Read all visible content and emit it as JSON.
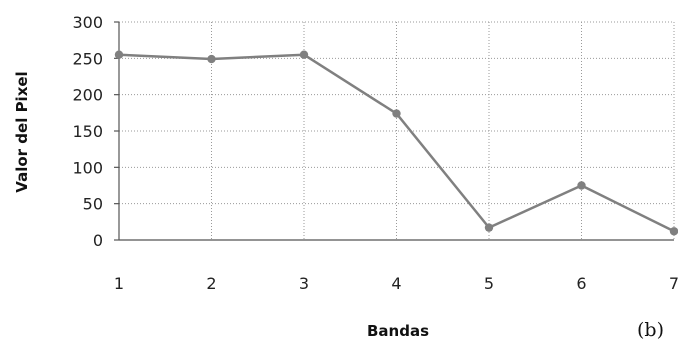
{
  "chart_data": {
    "type": "line",
    "title": "",
    "xlabel": "Bandas",
    "ylabel": "Valor del Pixel",
    "panel_label": "(b)",
    "x": [
      1,
      2,
      3,
      4,
      5,
      6,
      7
    ],
    "x_tick_labels": [
      "1",
      "2",
      "3",
      "4",
      "5",
      "6",
      "7"
    ],
    "y_tick_labels": [
      "0",
      "50",
      "100",
      "150",
      "200",
      "250",
      "300"
    ],
    "ylim": [
      0,
      300
    ],
    "xlim": [
      1,
      7
    ],
    "grid": true,
    "legend": "none",
    "series": [
      {
        "color": "#808080",
        "values": [
          255,
          249,
          255,
          174,
          17,
          75,
          12
        ]
      }
    ]
  }
}
